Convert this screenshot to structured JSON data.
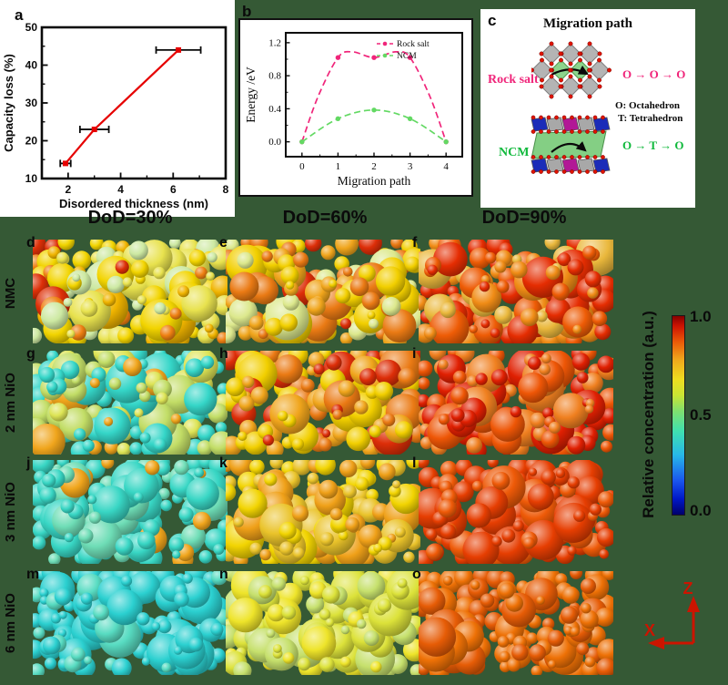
{
  "figure": {
    "background_color": "#355935",
    "letters": {
      "a": "a",
      "b": "b",
      "c": "c"
    }
  },
  "chart_data": [
    {
      "id": "capacity-loss",
      "type": "scatter",
      "xlabel": "Disordered thickness (nm)",
      "ylabel": "Capacity loss (%)",
      "xlim": [
        1,
        8
      ],
      "ylim": [
        10,
        50
      ],
      "xticks": [
        2,
        4,
        6,
        8
      ],
      "yticks": [
        10,
        20,
        30,
        40,
        50
      ],
      "grid": false,
      "series": [
        {
          "name": "capacity loss",
          "color": "#e60000",
          "marker": "square",
          "points": [
            {
              "x": 1.9,
              "y": 14,
              "xerr": 0.2
            },
            {
              "x": 3.0,
              "y": 23,
              "xerr": 0.55
            },
            {
              "x": 6.2,
              "y": 44,
              "xerr": 0.85
            }
          ]
        }
      ]
    },
    {
      "id": "migration-energy",
      "type": "line",
      "xlabel": "Migration path",
      "ylabel": "Energy /eV",
      "xlim": [
        -0.45,
        4.45
      ],
      "ylim": [
        -0.18,
        1.32
      ],
      "xticks": [
        0,
        1,
        2,
        3,
        4
      ],
      "yticks": [
        0.0,
        0.4,
        0.8,
        1.2
      ],
      "grid": false,
      "legend_position": "top-right",
      "series": [
        {
          "name": "Rock salt",
          "color": "#f0257a",
          "dashed": true,
          "markers": [
            [
              0,
              0.0
            ],
            [
              1,
              1.02
            ],
            [
              2,
              1.02
            ],
            [
              3,
              1.02
            ],
            [
              4,
              0.0
            ]
          ],
          "curve": [
            [
              0,
              0.0
            ],
            [
              0.45,
              0.55
            ],
            [
              1,
              1.02
            ],
            [
              1.4,
              1.09
            ],
            [
              2,
              1.02
            ],
            [
              2.6,
              1.09
            ],
            [
              3,
              1.02
            ],
            [
              3.55,
              0.55
            ],
            [
              4,
              0.0
            ]
          ]
        },
        {
          "name": "NCM",
          "color": "#63d963",
          "dashed": true,
          "markers": [
            [
              0,
              0.0
            ],
            [
              1,
              0.28
            ],
            [
              2,
              0.385
            ],
            [
              3,
              0.28
            ],
            [
              4,
              0.0
            ]
          ],
          "curve": [
            [
              0,
              0.0
            ],
            [
              1,
              0.28
            ],
            [
              2,
              0.385
            ],
            [
              3,
              0.28
            ],
            [
              4,
              0.0
            ]
          ]
        }
      ]
    }
  ],
  "panel_c": {
    "title": "Migration path",
    "rock_salt_label": "Rock salt",
    "rock_salt_color": "#f0257a",
    "ncm_label": "NCM",
    "ncm_color": "#10b93c",
    "rock_salt_path": "O → O → O",
    "octahedron_note": "O: Octahedron",
    "tetrahedron_note": "T: Tetrahedron",
    "ncm_path": "O → T → O"
  },
  "headers": [
    {
      "label": "DoD=30%"
    },
    {
      "label": "DoD=60%"
    },
    {
      "label": "DoD=90%"
    }
  ],
  "rows": [
    {
      "label": "NMC"
    },
    {
      "label": "2 nm NiO"
    },
    {
      "label": "3 nm NiO"
    },
    {
      "label": "6 nm NiO"
    }
  ],
  "particle_panels": [
    {
      "letter": "d",
      "row": 0,
      "col": 0,
      "palette": [
        [
          "#f2d400",
          0.3
        ],
        [
          "#e8e24e",
          0.22
        ],
        [
          "#cde9a2",
          0.2
        ],
        [
          "#f0b400",
          0.13
        ],
        [
          "#ee8012",
          0.11
        ],
        [
          "#dd3008",
          0.04
        ]
      ]
    },
    {
      "letter": "e",
      "row": 0,
      "col": 1,
      "palette": [
        [
          "#f2cf00",
          0.28
        ],
        [
          "#f0a51c",
          0.26
        ],
        [
          "#ea7a14",
          0.2
        ],
        [
          "#dce88c",
          0.16
        ],
        [
          "#dd2e08",
          0.1
        ]
      ]
    },
    {
      "letter": "f",
      "row": 0,
      "col": 2,
      "palette": [
        [
          "#e52d02",
          0.34
        ],
        [
          "#ee5c06",
          0.28
        ],
        [
          "#f08c16",
          0.22
        ],
        [
          "#eab83c",
          0.16
        ]
      ]
    },
    {
      "letter": "g",
      "row": 1,
      "col": 0,
      "palette": [
        [
          "#35d6c8",
          0.44
        ],
        [
          "#c2dd66",
          0.28
        ],
        [
          "#dde455",
          0.16
        ],
        [
          "#f0a51c",
          0.08
        ],
        [
          "#dd2e08",
          0.04
        ]
      ]
    },
    {
      "letter": "h",
      "row": 1,
      "col": 1,
      "palette": [
        [
          "#f2cf00",
          0.34
        ],
        [
          "#f0a51c",
          0.3
        ],
        [
          "#ea7a14",
          0.24
        ],
        [
          "#dd2e08",
          0.12
        ]
      ]
    },
    {
      "letter": "i",
      "row": 1,
      "col": 2,
      "palette": [
        [
          "#e02002",
          0.4
        ],
        [
          "#ee5606",
          0.32
        ],
        [
          "#f08020",
          0.28
        ]
      ]
    },
    {
      "letter": "j",
      "row": 2,
      "col": 0,
      "palette": [
        [
          "#38d6c4",
          0.7
        ],
        [
          "#6eddb6",
          0.22
        ],
        [
          "#f0a51c",
          0.08
        ]
      ]
    },
    {
      "letter": "k",
      "row": 2,
      "col": 1,
      "palette": [
        [
          "#f2d402",
          0.42
        ],
        [
          "#eac32a",
          0.26
        ],
        [
          "#efa018",
          0.32
        ]
      ]
    },
    {
      "letter": "l",
      "row": 2,
      "col": 2,
      "palette": [
        [
          "#e63e02",
          0.66
        ],
        [
          "#ee5a08",
          0.34
        ]
      ]
    },
    {
      "letter": "m",
      "row": 3,
      "col": 0,
      "palette": [
        [
          "#2bd0d0",
          0.78
        ],
        [
          "#58dcc2",
          0.22
        ]
      ]
    },
    {
      "letter": "n",
      "row": 3,
      "col": 1,
      "palette": [
        [
          "#dce23a",
          0.48
        ],
        [
          "#eee42a",
          0.3
        ],
        [
          "#c6e06c",
          0.22
        ]
      ]
    },
    {
      "letter": "o",
      "row": 3,
      "col": 2,
      "palette": [
        [
          "#ee7106",
          0.68
        ],
        [
          "#e65c06",
          0.32
        ]
      ]
    }
  ],
  "colorbar": {
    "label": "Relative concentration (a.u.)",
    "ticks": [
      "1.0",
      "0.5",
      "0.0"
    ],
    "stops": [
      "#00006b 0%",
      "#0018c8 8%",
      "#1a55ee 17%",
      "#27b8e8 30%",
      "#3fe0b0 42%",
      "#7ee070 52%",
      "#c8e434 60%",
      "#eede20 68%",
      "#f0a81c 78%",
      "#ea5a08 87%",
      "#cc1402 95%",
      "#860000 100%"
    ]
  },
  "axes_indicator": {
    "z_label": "Z",
    "x_label": "X",
    "color": "#cc1400"
  }
}
